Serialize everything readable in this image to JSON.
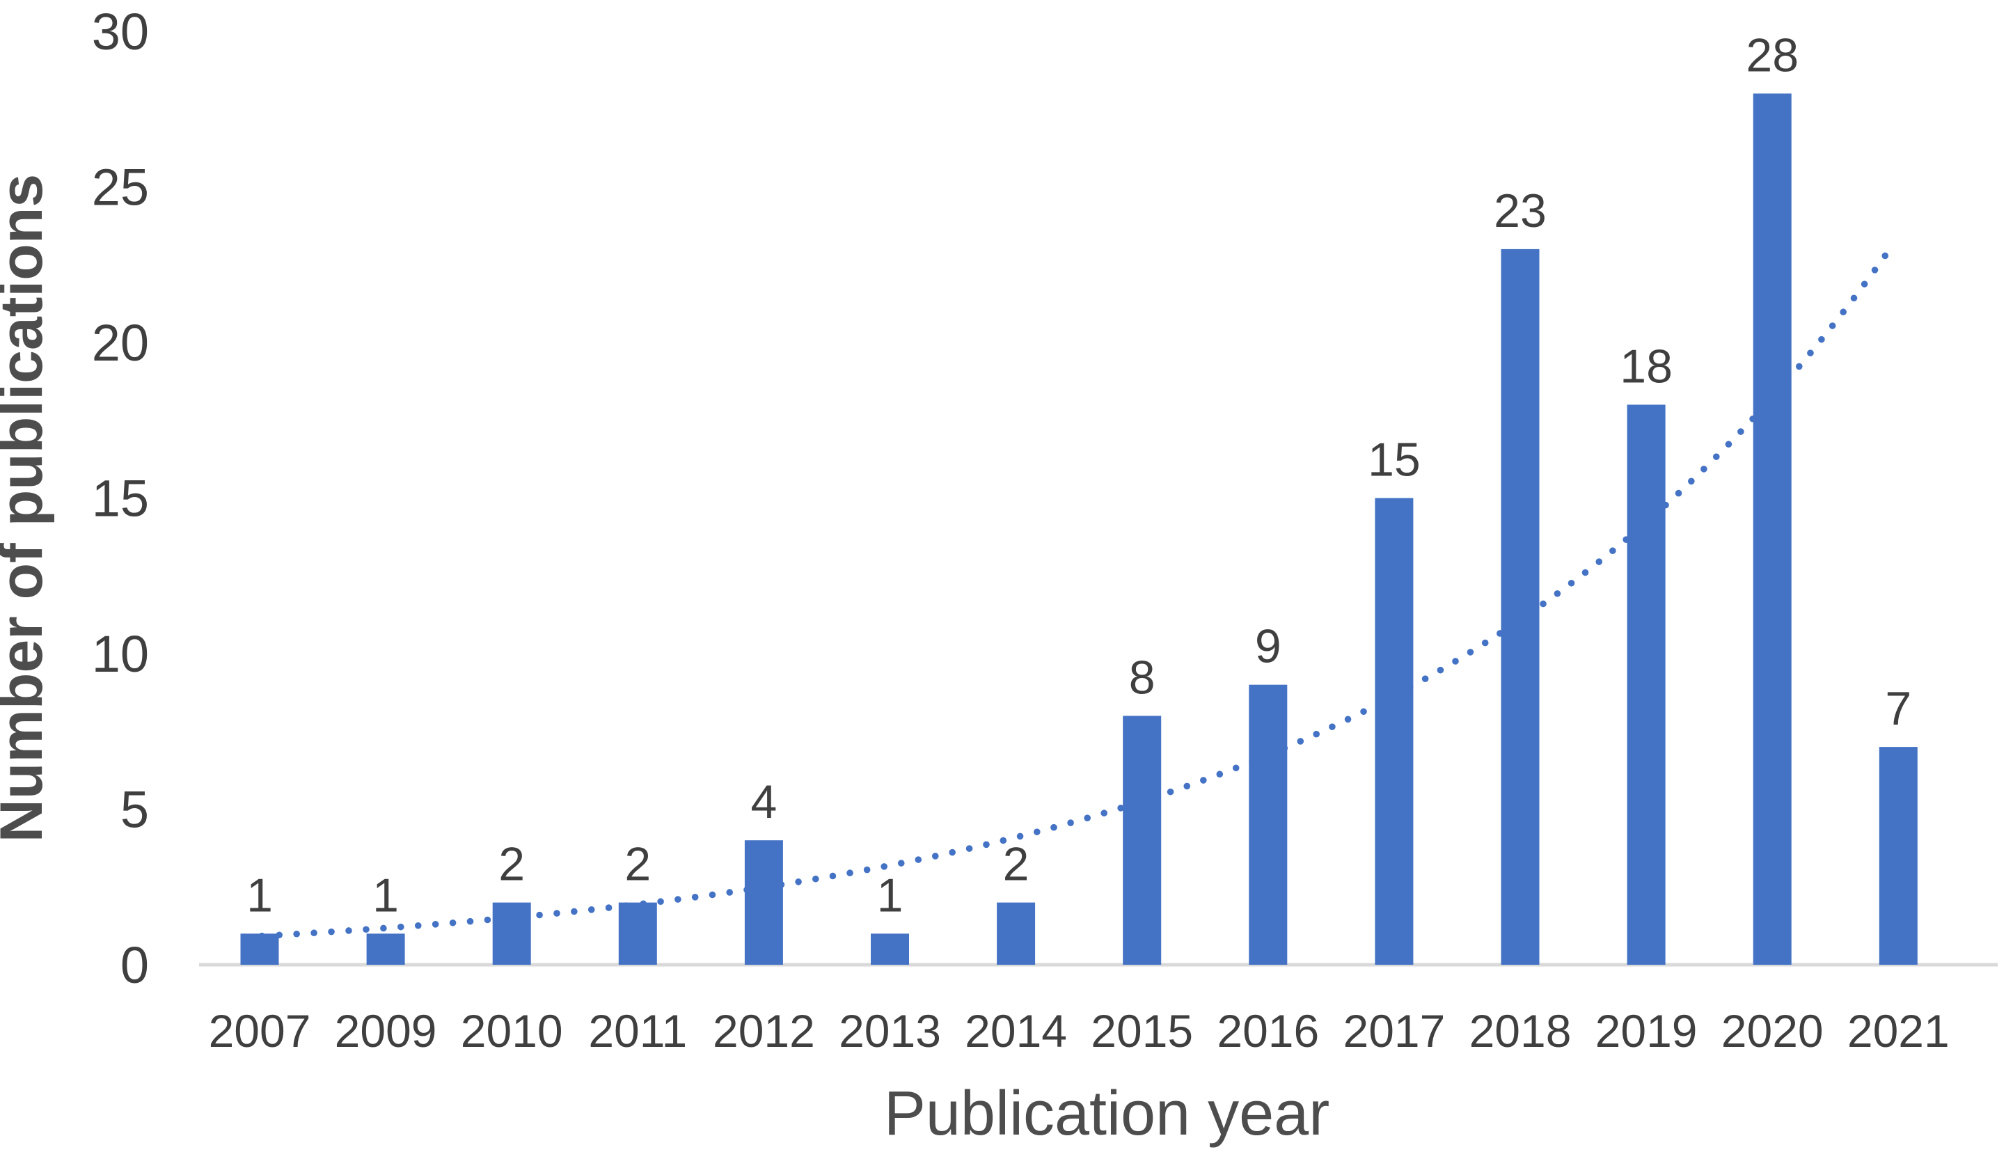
{
  "chart_data": {
    "type": "bar",
    "title": "",
    "categories": [
      "2007",
      "2009",
      "2010",
      "2011",
      "2012",
      "2013",
      "2014",
      "2015",
      "2016",
      "2017",
      "2018",
      "2019",
      "2020",
      "2021"
    ],
    "values": [
      1,
      1,
      2,
      2,
      4,
      1,
      2,
      8,
      9,
      15,
      23,
      18,
      28,
      7
    ],
    "xlabel": "Publication year",
    "ylabel": "Number of publications",
    "ylim": [
      0,
      30
    ],
    "yticks": [
      0,
      5,
      10,
      15,
      20,
      25,
      30
    ],
    "grid": false,
    "legend": "none",
    "data_labels_shown": true,
    "bar_color": "#4472C4",
    "axis_line_color": "#D9D9D9",
    "tick_label_color": "#3F3F3F",
    "data_label_color": "#3F3F3F",
    "axis_title_color": "#4D4D4D",
    "trendline": {
      "type": "exponential",
      "style": "dotted",
      "color": "#4472C4",
      "fit_a": 0.92,
      "fit_b": 0.2489,
      "start_index": -0.12,
      "end_index": 12.95,
      "approx_values_by_category": [
        0.9,
        1.2,
        1.5,
        1.9,
        2.5,
        3.2,
        4.1,
        5.2,
        6.7,
        8.6,
        11.0,
        14.1,
        18.1,
        23.2
      ]
    }
  }
}
